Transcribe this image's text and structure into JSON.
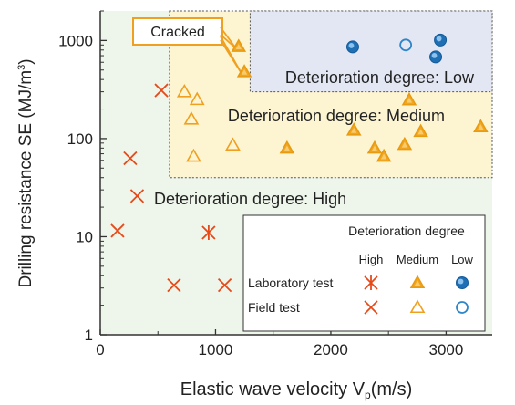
{
  "chart_data": {
    "type": "scatter",
    "xlabel": "Elastic wave velocity V",
    "xlabel_sub": "p",
    "xlabel_unit": "(m/s)",
    "ylabel": "Drilling resistance SE (MJ/m",
    "ylabel_sup": "3",
    "ylabel_end": ")",
    "y_scale": "log",
    "xlim": [
      0,
      3400
    ],
    "ylim": [
      1,
      2000
    ],
    "x_ticks": [
      0,
      1000,
      2000,
      3000
    ],
    "x_tick_labels": [
      "0",
      "1000",
      "2000",
      "3000"
    ],
    "y_ticks": [
      1,
      10,
      100,
      1000
    ],
    "y_tick_labels": [
      "1",
      "10",
      "100",
      "1000"
    ],
    "regions": [
      {
        "label": "Deterioration degree: High",
        "color": "#eef5ea"
      },
      {
        "label": "Deterioration degree: Medium",
        "color": "#fdf5d2",
        "x_from": 600,
        "y_from": 40
      },
      {
        "label": "Deterioration degree: Low",
        "color": "#e3e7f4",
        "x_from": 1300,
        "y_from": 300
      }
    ],
    "annotation": "Cracked",
    "legend": {
      "title": "Deterioration degree",
      "columns": [
        "High",
        "Medium",
        "Low"
      ],
      "rows": [
        "Laboratory test",
        "Field test"
      ],
      "placement": "lower-right"
    },
    "series": [
      {
        "name": "Laboratory test",
        "degree": "High",
        "marker": "asterisk",
        "color": "#e64a19",
        "x": [
          940
        ],
        "y": [
          11
        ]
      },
      {
        "name": "Field test",
        "degree": "High",
        "marker": "x",
        "color": "#e64a19",
        "x": [
          150,
          260,
          320,
          530,
          640,
          1080
        ],
        "y": [
          11.5,
          63,
          26,
          310,
          3.2,
          3.2
        ]
      },
      {
        "name": "Laboratory test",
        "degree": "Medium",
        "marker": "triangle-filled",
        "color": "#f0a020",
        "x": [
          1200,
          1250,
          1620,
          2200,
          2380,
          2460,
          2640,
          2680,
          2780,
          3300
        ],
        "y": [
          870,
          480,
          80,
          122,
          80,
          66,
          87,
          248,
          118,
          132
        ]
      },
      {
        "name": "Field test",
        "degree": "Medium",
        "marker": "triangle-open",
        "color": "#f0a020",
        "x": [
          730,
          840,
          790,
          810,
          1150
        ],
        "y": [
          300,
          250,
          158,
          66,
          86
        ]
      },
      {
        "name": "Laboratory test",
        "degree": "Low",
        "marker": "circle-filled",
        "color": "#2e86c9",
        "x": [
          2190,
          2910,
          2950
        ],
        "y": [
          860,
          680,
          1010
        ]
      },
      {
        "name": "Field test",
        "degree": "Low",
        "marker": "circle-open",
        "color": "#2e86c9",
        "x": [
          2650
        ],
        "y": [
          900
        ]
      }
    ]
  }
}
